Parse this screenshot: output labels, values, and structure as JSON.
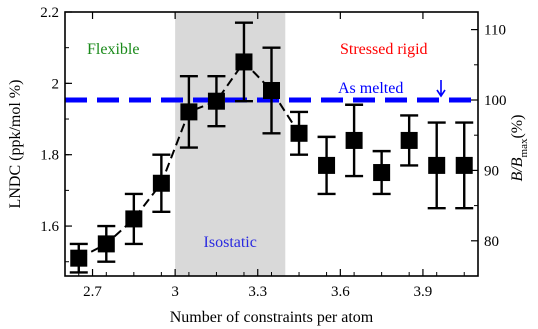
{
  "chart_data": {
    "type": "scatter",
    "xlabel": "Number of constraints per atom",
    "ylabel": "LNDC (ppk/mol %)",
    "y2label_main": "B/B",
    "y2label_sub": "max",
    "y2label_unit": "(%)",
    "xlim": [
      2.6,
      4.1
    ],
    "ylim": [
      1.46,
      2.2
    ],
    "y2lim": [
      75,
      112.5
    ],
    "x_ticks": [
      "2.7",
      "3",
      "3.3",
      "3.6",
      "3.9"
    ],
    "x_tick_values": [
      2.7,
      3.0,
      3.3,
      3.6,
      3.9
    ],
    "y_ticks": [
      "1.6",
      "1.8",
      "2",
      "2.2"
    ],
    "y_tick_values": [
      1.6,
      1.8,
      2.0,
      2.2
    ],
    "y2_ticks": [
      "80",
      "90",
      "100",
      "110"
    ],
    "y2_tick_values": [
      80,
      90,
      100,
      110
    ],
    "grid": false,
    "shaded_region": {
      "x": [
        3.0,
        3.4
      ],
      "label": "Isostatic",
      "color": "#d9d9d9",
      "label_color": "#2a2ae0"
    },
    "region_labels": [
      {
        "text": "Flexible",
        "color": "#1a8a1a"
      },
      {
        "text": "Stressed rigid",
        "color": "#ff0000"
      }
    ],
    "reference_line": {
      "y2": 100,
      "label": "As melted",
      "color": "#0000ff"
    },
    "series": [
      {
        "marker": "square",
        "color": "#000000",
        "points": [
          {
            "x": 2.65,
            "y": 1.51,
            "err": 0.04
          },
          {
            "x": 2.75,
            "y": 1.55,
            "err": 0.05
          },
          {
            "x": 2.85,
            "y": 1.62,
            "err": 0.07
          },
          {
            "x": 2.95,
            "y": 1.72,
            "err": 0.08
          },
          {
            "x": 3.05,
            "y": 1.92,
            "err": 0.1
          },
          {
            "x": 3.15,
            "y": 1.95,
            "err": 0.07
          },
          {
            "x": 3.25,
            "y": 2.06,
            "err": 0.11
          },
          {
            "x": 3.35,
            "y": 1.98,
            "err": 0.12
          },
          {
            "x": 3.45,
            "y": 1.86,
            "err": 0.06
          },
          {
            "x": 3.55,
            "y": 1.77,
            "err": 0.08
          },
          {
            "x": 3.65,
            "y": 1.84,
            "err": 0.1
          },
          {
            "x": 3.75,
            "y": 1.75,
            "err": 0.06
          },
          {
            "x": 3.85,
            "y": 1.84,
            "err": 0.07
          },
          {
            "x": 3.95,
            "y": 1.77,
            "err": 0.12
          },
          {
            "x": 4.05,
            "y": 1.77,
            "err": 0.12
          }
        ],
        "connector_x_max": 3.45
      }
    ]
  }
}
